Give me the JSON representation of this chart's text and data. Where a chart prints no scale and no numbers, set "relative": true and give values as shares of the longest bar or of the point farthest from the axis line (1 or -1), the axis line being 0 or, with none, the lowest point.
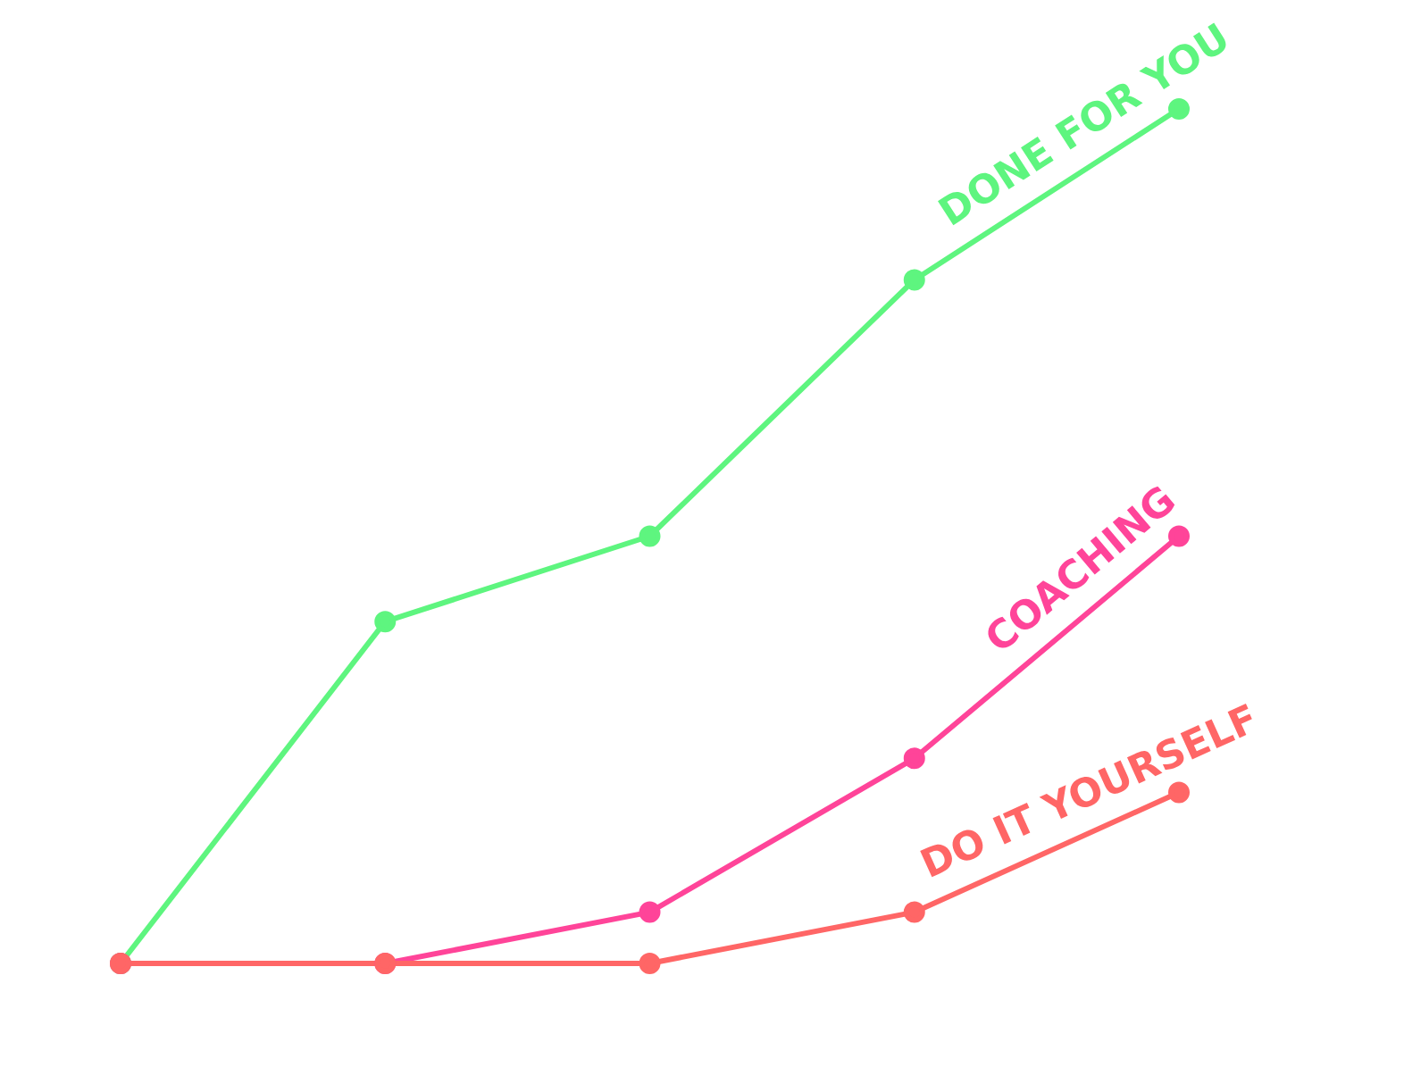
{
  "chart_data": {
    "type": "line",
    "relative": true,
    "marker": "circle",
    "line_style": "solid",
    "categories": [
      null,
      null,
      null,
      null,
      null
    ],
    "series": [
      {
        "name": "DONE FOR YOU",
        "color": "#5ef57f",
        "values": [
          0,
          0.4,
          0.5,
          0.8,
          1
        ]
      },
      {
        "name": "COACHING",
        "color": "#ff4499",
        "values": [
          0,
          0,
          0.06,
          0.24,
          0.5
        ]
      },
      {
        "name": "DO IT YOURSELF",
        "color": "#ff6666",
        "values": [
          0,
          0,
          0,
          0.06,
          0.2
        ]
      }
    ]
  }
}
